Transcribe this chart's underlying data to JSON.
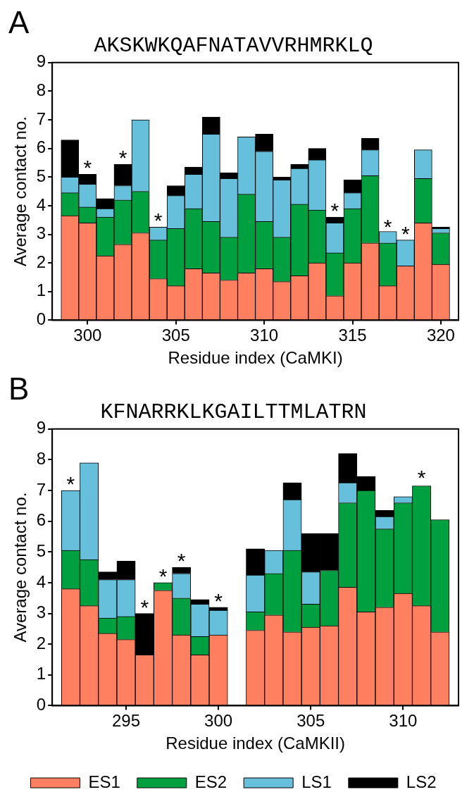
{
  "chart_data": [
    {
      "type": "bar",
      "title": "A",
      "subtitle": "AKSKWKQAFNATAVVRHMRKLQ",
      "xlabel": "Residue index (CaMKI)",
      "ylabel": "Average contact no.",
      "stacked": true,
      "x": [
        299,
        300,
        301,
        302,
        303,
        304,
        305,
        306,
        307,
        308,
        309,
        310,
        311,
        312,
        313,
        314,
        315,
        316,
        317,
        318,
        319,
        320
      ],
      "xlim": [
        298,
        321
      ],
      "xticks": [
        300,
        305,
        310,
        315,
        320
      ],
      "ylim": [
        0,
        9
      ],
      "yticks": [
        0,
        1,
        2,
        3,
        4,
        5,
        6,
        7,
        8,
        9
      ],
      "series": [
        {
          "color": "#ff8060",
          "values": [
            3.65,
            3.4,
            2.25,
            2.65,
            3.05,
            1.45,
            1.2,
            1.8,
            1.65,
            1.4,
            1.65,
            1.8,
            1.35,
            1.55,
            2.0,
            0.85,
            2.0,
            2.7,
            1.2,
            1.9,
            3.4,
            1.95
          ]
        },
        {
          "color": "#00a040",
          "values": [
            0.8,
            0.55,
            1.35,
            1.55,
            1.45,
            1.35,
            2.0,
            2.1,
            1.8,
            1.5,
            2.75,
            1.65,
            1.55,
            2.5,
            1.85,
            1.5,
            1.9,
            2.35,
            1.5,
            0,
            1.55,
            1.1
          ]
        },
        {
          "color": "#66bfdb",
          "values": [
            0.55,
            0.8,
            0.3,
            0.5,
            2.5,
            0.45,
            1.15,
            1.2,
            3.05,
            2.05,
            2.0,
            2.45,
            2.0,
            1.25,
            1.75,
            1.05,
            0.55,
            0.9,
            0.4,
            0.9,
            1.0,
            0.15
          ]
        },
        {
          "color": "#000000",
          "values": [
            1.3,
            0.35,
            0.35,
            0.75,
            0,
            0,
            0.35,
            0.25,
            0.6,
            0.2,
            0,
            0.6,
            0.1,
            0.15,
            0.4,
            0.2,
            0.45,
            0.4,
            0,
            0,
            0,
            0.05
          ]
        }
      ],
      "annotations": [
        {
          "text": "*",
          "x": 300,
          "y": 5.1
        },
        {
          "text": "*",
          "x": 302,
          "y": 5.45
        },
        {
          "text": "*",
          "x": 304,
          "y": 3.25
        },
        {
          "text": "*",
          "x": 314,
          "y": 3.6
        },
        {
          "text": "*",
          "x": 317,
          "y": 3.05
        },
        {
          "text": "*",
          "x": 318,
          "y": 2.8
        }
      ]
    },
    {
      "type": "bar",
      "title": "B",
      "subtitle": "KFNARRKLKGAILTTMLATRN",
      "xlabel": "Residue index (CaMKII)",
      "ylabel": "Average contact no.",
      "stacked": true,
      "legend": "bottom",
      "x": [
        292,
        293,
        294,
        295,
        296,
        297,
        298,
        299,
        300,
        301,
        302,
        303,
        304,
        305,
        306,
        307,
        308,
        309,
        310,
        311,
        312
      ],
      "xlim": [
        291,
        313
      ],
      "xticks": [
        295,
        300,
        305,
        310
      ],
      "ylim": [
        0,
        9
      ],
      "yticks": [
        0,
        1,
        2,
        3,
        4,
        5,
        6,
        7,
        8,
        9
      ],
      "series": [
        {
          "name": "ES1",
          "color": "#ff8060",
          "values": [
            3.8,
            3.25,
            2.35,
            2.15,
            1.65,
            3.75,
            2.3,
            1.65,
            2.3,
            null,
            2.45,
            2.95,
            2.4,
            2.55,
            2.6,
            3.85,
            3.05,
            3.2,
            3.65,
            3.25,
            2.4
          ]
        },
        {
          "name": "ES2",
          "color": "#00a040",
          "values": [
            1.25,
            1.5,
            0.5,
            0.75,
            0,
            0.25,
            1.2,
            0.6,
            0,
            null,
            0.6,
            1.35,
            2.65,
            0.75,
            1.8,
            2.75,
            3.95,
            2.55,
            2.95,
            3.9,
            3.65
          ]
        },
        {
          "name": "LS1",
          "color": "#66bfdb",
          "values": [
            1.95,
            3.15,
            1.25,
            1.2,
            0,
            0,
            0.8,
            1.05,
            0.8,
            null,
            1.2,
            0.75,
            1.65,
            1.05,
            0,
            0.65,
            0,
            0.4,
            0.2,
            0,
            0
          ]
        },
        {
          "name": "LS2",
          "color": "#000000",
          "values": [
            0,
            0,
            0.25,
            0.6,
            1.35,
            0,
            0.2,
            0.15,
            0.1,
            null,
            0.85,
            0,
            0.55,
            1.25,
            1.2,
            0.95,
            0.45,
            0.2,
            0,
            0,
            0
          ]
        }
      ],
      "annotations": [
        {
          "text": "*",
          "x": 292,
          "y": 7.0
        },
        {
          "text": "*",
          "x": 296,
          "y": 3.0
        },
        {
          "text": "*",
          "x": 297,
          "y": 4.0
        },
        {
          "text": "*",
          "x": 298,
          "y": 4.5
        },
        {
          "text": "*",
          "x": 300,
          "y": 3.2
        },
        {
          "text": "*",
          "x": 311,
          "y": 7.2
        }
      ]
    }
  ]
}
